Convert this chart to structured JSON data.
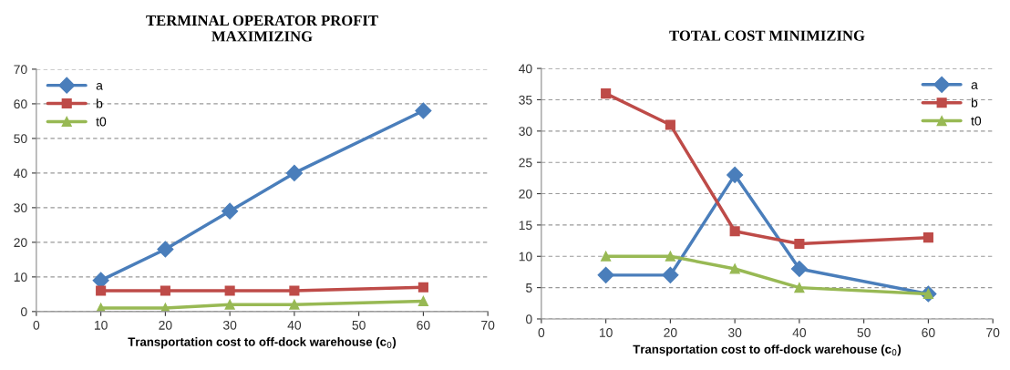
{
  "chart_data": [
    {
      "type": "line",
      "title": "TERMINAL OPERATOR PROFIT\nMAXIMIZING",
      "xlabel": "Transportation cost to off-dock warehouse (c$_{0}$)",
      "x": [
        10,
        20,
        30,
        40,
        60
      ],
      "xlim": [
        0,
        70
      ],
      "xticks": [
        0,
        10,
        20,
        30,
        40,
        50,
        60,
        70
      ],
      "ylim": [
        0,
        70
      ],
      "yticks": [
        0,
        10,
        20,
        30,
        40,
        50,
        60,
        70
      ],
      "grid": "y",
      "legend": "top left",
      "series": [
        {
          "name": "a",
          "color": "#4a7ebb",
          "marker": "diamond",
          "values": [
            9,
            18,
            29,
            40,
            58
          ]
        },
        {
          "name": "b",
          "color": "#be4b48",
          "marker": "square",
          "values": [
            6,
            6,
            6,
            6,
            7
          ]
        },
        {
          "name": "t0",
          "color": "#98b954",
          "marker": "triangle",
          "values": [
            1,
            1,
            2,
            2,
            3
          ]
        }
      ]
    },
    {
      "type": "line",
      "title": "TOTAL COST MINIMIZING",
      "xlabel": "Transportation cost to off-dock warehouse (c$_{0}$)",
      "x": [
        10,
        20,
        30,
        40,
        60
      ],
      "xlim": [
        0,
        70
      ],
      "xticks": [
        0,
        10,
        20,
        30,
        40,
        50,
        60,
        70
      ],
      "ylim": [
        0,
        40
      ],
      "yticks": [
        0,
        5,
        10,
        15,
        20,
        25,
        30,
        35,
        40
      ],
      "grid": "y",
      "legend": "top right",
      "series": [
        {
          "name": "a",
          "color": "#4a7ebb",
          "marker": "diamond",
          "values": [
            7,
            7,
            23,
            8,
            4
          ]
        },
        {
          "name": "b",
          "color": "#be4b48",
          "marker": "square",
          "values": [
            36,
            31,
            14,
            12,
            13
          ]
        },
        {
          "name": "t0",
          "color": "#98b954",
          "marker": "triangle",
          "values": [
            10,
            10,
            8,
            5,
            4
          ]
        }
      ]
    }
  ]
}
